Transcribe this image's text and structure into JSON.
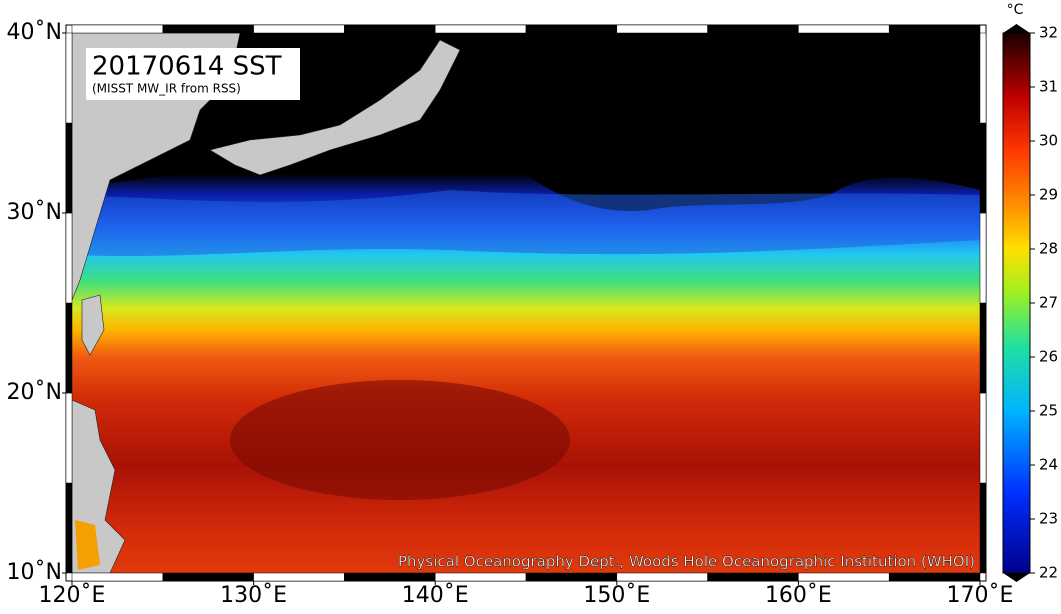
{
  "map": {
    "title": "20170614 SST",
    "subtitle": "(MISST MW_IR from RSS)",
    "credit": "Physical Oceanography Dept., Woods Hole Oceanographic Institution (WHOI)",
    "xlim": [
      120,
      170
    ],
    "ylim": [
      10,
      40
    ],
    "xticks": [
      {
        "value": 120,
        "label": "120˚E"
      },
      {
        "value": 130,
        "label": "130˚E"
      },
      {
        "value": 140,
        "label": "140˚E"
      },
      {
        "value": 150,
        "label": "150˚E"
      },
      {
        "value": 160,
        "label": "160˚E"
      },
      {
        "value": 170,
        "label": "170˚E"
      }
    ],
    "yticks": [
      {
        "value": 10,
        "label": "10˚N"
      },
      {
        "value": 20,
        "label": "20˚N"
      },
      {
        "value": 30,
        "label": "30˚N"
      },
      {
        "value": 40,
        "label": "40˚N"
      }
    ],
    "colorbar": {
      "unit": "°C",
      "lim": [
        22,
        32
      ],
      "ticks": [
        22,
        23,
        24,
        25,
        26,
        27,
        28,
        29,
        30,
        31,
        32
      ]
    }
  }
}
